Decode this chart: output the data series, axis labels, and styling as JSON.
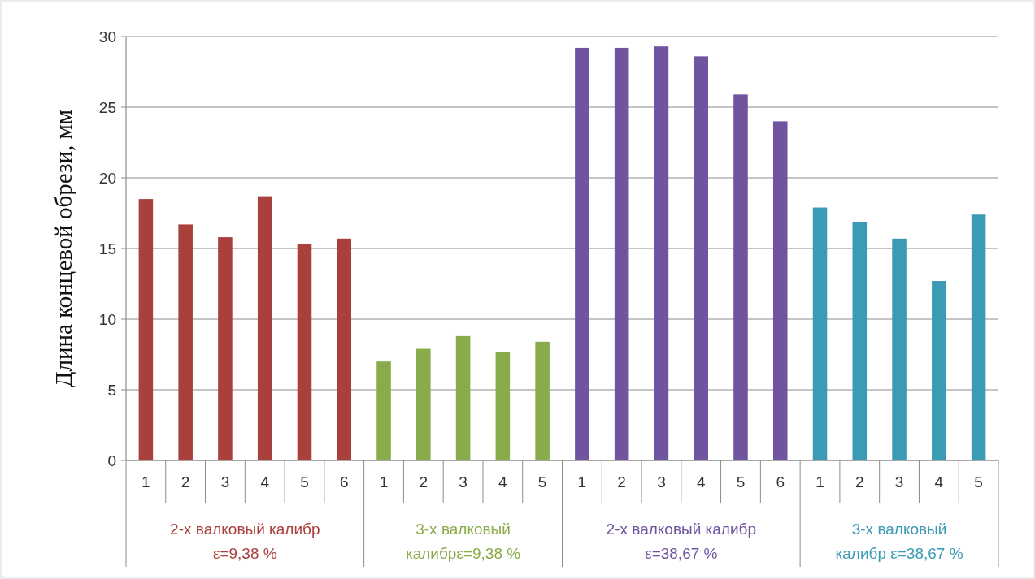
{
  "chart_data": {
    "type": "bar",
    "ylabel": "Длина концевой обрези, мм",
    "categories": [
      "1",
      "2",
      "3",
      "4",
      "5",
      "6",
      "1",
      "2",
      "3",
      "4",
      "5",
      "1",
      "2",
      "3",
      "4",
      "5",
      "6",
      "1",
      "2",
      "3",
      "4",
      "5"
    ],
    "series": [
      {
        "name": "2-х валковый калибр\nε=9,38 %",
        "color": "#a9403c",
        "values": [
          18.5,
          16.7,
          15.8,
          18.7,
          15.3,
          15.7,
          null,
          null,
          null,
          null,
          null,
          null,
          null,
          null,
          null,
          null,
          null,
          null,
          null,
          null,
          null,
          null
        ]
      },
      {
        "name": "3-х валковый\nкалибрε=9,38 %",
        "color": "#8aab49",
        "values": [
          null,
          null,
          null,
          null,
          null,
          null,
          7.0,
          7.9,
          8.8,
          7.7,
          8.4,
          null,
          null,
          null,
          null,
          null,
          null,
          null,
          null,
          null,
          null,
          null
        ]
      },
      {
        "name": "2-х валковый калибр\nε=38,67 %",
        "color": "#7154a0",
        "values": [
          null,
          null,
          null,
          null,
          null,
          null,
          null,
          null,
          null,
          null,
          null,
          29.2,
          29.2,
          29.3,
          28.6,
          25.9,
          24.0,
          null,
          null,
          null,
          null,
          null
        ]
      },
      {
        "name": "3-х валковый\nкалибр ε=38,67 %",
        "color": "#3c9bb4",
        "values": [
          null,
          null,
          null,
          null,
          null,
          null,
          null,
          null,
          null,
          null,
          null,
          null,
          null,
          null,
          null,
          null,
          null,
          17.9,
          16.9,
          15.7,
          12.7,
          17.4
        ]
      }
    ],
    "ylim": [
      0,
      30
    ],
    "yticks": [
      0,
      5,
      10,
      15,
      20,
      25,
      30
    ],
    "grid": "y"
  }
}
